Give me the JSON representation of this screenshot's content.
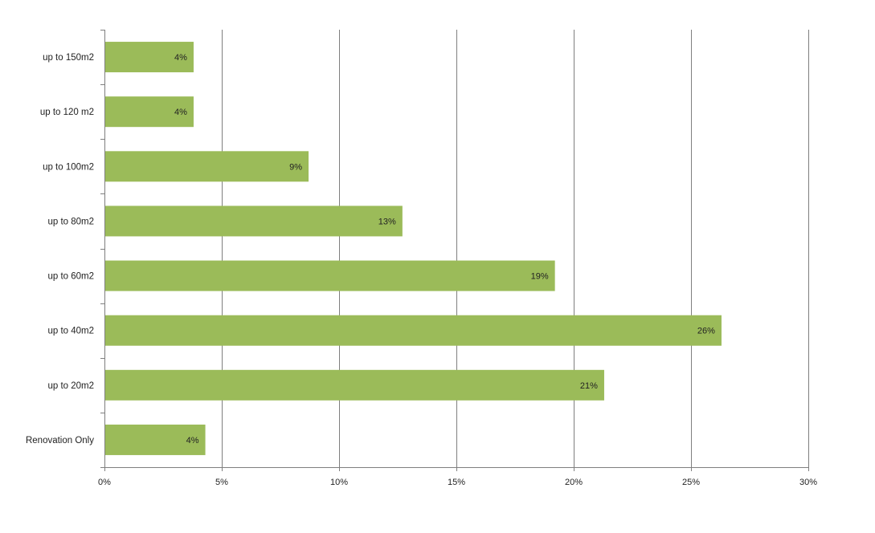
{
  "chart_data": {
    "type": "bar",
    "orientation": "horizontal",
    "categories": [
      "up to 150m2",
      "up to 120 m2",
      "up to 100m2",
      "up to 80m2",
      "up to 60m2",
      "up to 40m2",
      "up to 20m2",
      "Renovation Only"
    ],
    "values": [
      3.8,
      3.8,
      8.7,
      12.7,
      19.2,
      26.3,
      21.3,
      4.3
    ],
    "data_labels": [
      "4%",
      "4%",
      "9%",
      "13%",
      "19%",
      "26%",
      "21%",
      "4%"
    ],
    "x_ticks": [
      0,
      5,
      10,
      15,
      20,
      25,
      30
    ],
    "x_tick_labels": [
      "0%",
      "5%",
      "10%",
      "15%",
      "20%",
      "25%",
      "30%"
    ],
    "xlim": [
      0,
      30
    ],
    "title": "",
    "xlabel": "",
    "ylabel": "",
    "grid": "vertical",
    "legend": "none",
    "bar_color": "#9BBB59",
    "grid_color": "#7F7F7F"
  }
}
